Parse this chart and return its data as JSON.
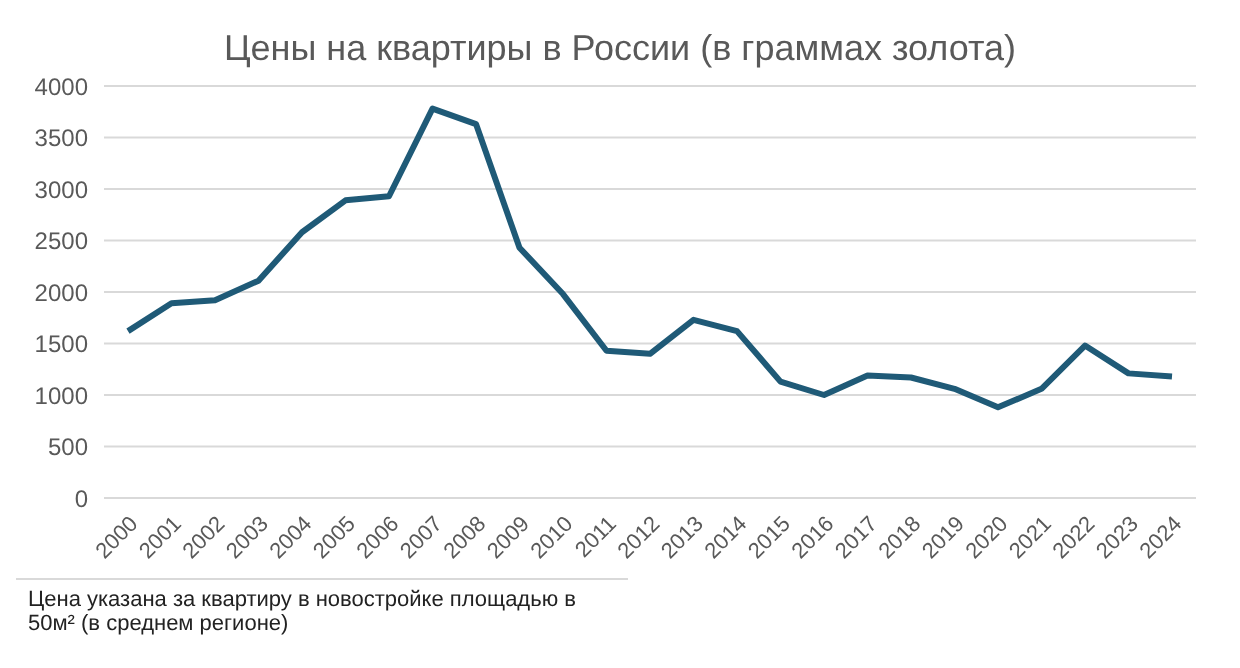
{
  "chart_data": {
    "type": "line",
    "title": "Цены на квартиры в России (в граммах золота)",
    "categories": [
      "2000",
      "2001",
      "2002",
      "2003",
      "2004",
      "2005",
      "2006",
      "2007",
      "2008",
      "2009",
      "2010",
      "2011",
      "2012",
      "2013",
      "2014",
      "2015",
      "2016",
      "2017",
      "2018",
      "2019",
      "2020",
      "2021",
      "2022",
      "2023",
      "2024"
    ],
    "series": [
      {
        "color": "#1f5a77",
        "values": [
          1620,
          1890,
          1920,
          2110,
          2580,
          2890,
          2930,
          3780,
          3630,
          2430,
          1980,
          1430,
          1400,
          1730,
          1620,
          1130,
          1000,
          1190,
          1170,
          1060,
          880,
          1060,
          1480,
          1210,
          1180
        ]
      }
    ],
    "ylim": [
      0,
      4000
    ],
    "yticks": [
      0,
      500,
      1000,
      1500,
      2000,
      2500,
      3000,
      3500,
      4000
    ],
    "grid": "y",
    "marker": "none",
    "line_style": "solid",
    "annotations": [
      "Цена указана за квартиру в новостройке площадью в 50м² (в среднем регионе)"
    ]
  }
}
